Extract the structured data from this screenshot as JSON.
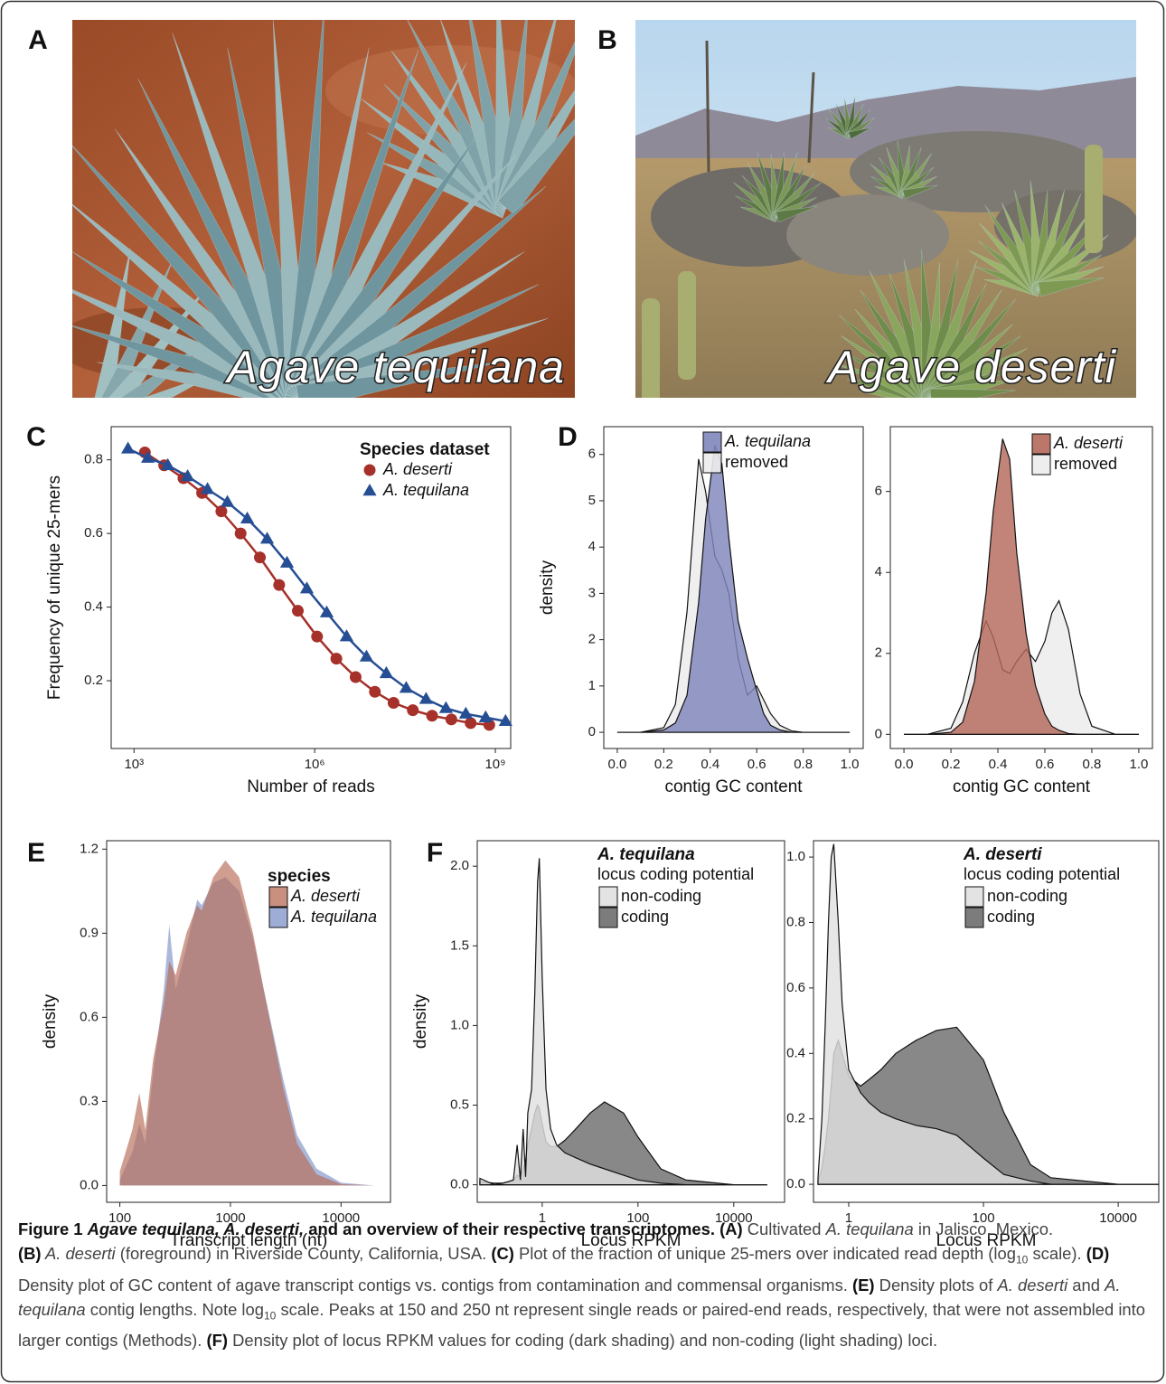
{
  "photos": [
    {
      "panel": "A",
      "caption": "Agave tequilana"
    },
    {
      "panel": "B",
      "caption": "Agave deserti"
    }
  ],
  "chart_data": [
    {
      "type": "scatter",
      "panel": "C",
      "xscale": "log",
      "legend": "top-right",
      "xlabel": "Number of reads",
      "ylabel": "Frequency of unique 25-mers",
      "legend_title": "Species dataset",
      "xlim": [
        417,
        1800000000
      ],
      "ylim": [
        0.016,
        0.89
      ],
      "xticks": [
        {
          "value": 1000,
          "label": "10³"
        },
        {
          "value": 1000000,
          "label": "10⁶"
        },
        {
          "value": 1000000000,
          "label": "10⁹"
        }
      ],
      "yticks": [
        0.2,
        0.4,
        0.6,
        0.8
      ],
      "series": [
        {
          "name": "A. deserti",
          "color": "#a6302a",
          "marker": "circle",
          "x": [
            1514,
            3162,
            6607,
            13490,
            28180,
            58880,
            123000,
            257000,
            525000,
            1096000,
            2291000,
            4786000,
            10000000,
            20420000,
            42660000,
            89130000,
            186200000,
            389000000,
            794300000
          ],
          "values": [
            0.82,
            0.785,
            0.75,
            0.71,
            0.66,
            0.6,
            0.535,
            0.46,
            0.39,
            0.32,
            0.26,
            0.21,
            0.17,
            0.14,
            0.12,
            0.105,
            0.095,
            0.085,
            0.08
          ]
        },
        {
          "name": "A. tequilana",
          "color": "#264e94",
          "marker": "triangle",
          "x": [
            794,
            1698,
            3631,
            7762,
            16600,
            35480,
            75860,
            162200,
            346700,
            741300,
            1585000,
            3388000,
            7244000,
            15490000,
            33110000,
            70790000,
            151400000,
            323600000,
            691800000,
            1479000000
          ],
          "values": [
            0.83,
            0.805,
            0.785,
            0.755,
            0.72,
            0.685,
            0.64,
            0.585,
            0.52,
            0.45,
            0.385,
            0.32,
            0.265,
            0.22,
            0.18,
            0.15,
            0.125,
            0.11,
            0.1,
            0.09
          ]
        }
      ]
    },
    {
      "type": "area",
      "panel": "D",
      "outline": true,
      "legend": "top-right",
      "xlabel": "contig GC content",
      "ylabel": "density",
      "xlim": [
        -0.058,
        1.058
      ],
      "ylim": [
        -0.35,
        6.6
      ],
      "xticks": [
        {
          "value": 0,
          "label": "0.0"
        },
        0.2,
        0.4,
        0.6,
        0.8,
        {
          "value": 1,
          "label": "1.0"
        }
      ],
      "yticks": [
        0,
        1,
        2,
        3,
        4,
        5,
        6
      ],
      "x": [
        0,
        0.1,
        0.2,
        0.25,
        0.3,
        0.35,
        0.38,
        0.42,
        0.45,
        0.48,
        0.52,
        0.56,
        0.6,
        0.63,
        0.66,
        0.7,
        0.75,
        0.8,
        0.9,
        1.0
      ],
      "series": [
        {
          "name": "A. tequilana",
          "color": "#7f86bb",
          "values": [
            0,
            0,
            0.05,
            0.2,
            0.8,
            2.8,
            4.6,
            6.2,
            5.8,
            4.2,
            2.4,
            1.6,
            0.9,
            0.4,
            0.15,
            0.05,
            0,
            0,
            0,
            0
          ]
        },
        {
          "name": "removed",
          "color": "#ececec",
          "values": [
            0,
            0,
            0.1,
            0.6,
            2.6,
            5.9,
            5.2,
            3.8,
            3.5,
            3.0,
            1.6,
            0.8,
            1.0,
            0.7,
            0.4,
            0.15,
            0.03,
            0,
            0,
            0
          ]
        }
      ]
    },
    {
      "type": "area",
      "outline": true,
      "legend": "top-right",
      "xlabel": "contig GC content",
      "xlim": [
        -0.058,
        1.058
      ],
      "ylim": [
        -0.35,
        7.6
      ],
      "xticks": [
        {
          "value": 0,
          "label": "0.0"
        },
        0.2,
        0.4,
        0.6,
        0.8,
        {
          "value": 1,
          "label": "1.0"
        }
      ],
      "yticks": [
        0,
        2,
        4,
        6
      ],
      "x": [
        0,
        0.1,
        0.2,
        0.25,
        0.3,
        0.35,
        0.38,
        0.42,
        0.45,
        0.48,
        0.52,
        0.56,
        0.6,
        0.63,
        0.66,
        0.7,
        0.75,
        0.8,
        0.9,
        1.0
      ],
      "series": [
        {
          "name": "A. deserti",
          "color": "#b4695a",
          "values": [
            0,
            0,
            0.05,
            0.3,
            1.3,
            3.5,
            5.5,
            7.3,
            6.8,
            4.5,
            2.5,
            1.2,
            0.5,
            0.2,
            0.1,
            0.02,
            0,
            0,
            0,
            0
          ]
        },
        {
          "name": "removed",
          "color": "#ececec",
          "values": [
            0,
            0,
            0.15,
            0.8,
            2.0,
            2.8,
            2.4,
            1.6,
            1.5,
            1.8,
            2.1,
            1.8,
            2.3,
            3.0,
            3.3,
            2.6,
            1.0,
            0.2,
            0,
            0
          ]
        }
      ]
    },
    {
      "type": "area",
      "panel": "E",
      "xscale": "log",
      "outline": false,
      "legend": "top-right",
      "xlabel": "Transcript length (nt)",
      "ylabel": "density",
      "legend_title": "species",
      "xlim": [
        76,
        28000
      ],
      "ylim": [
        -0.06,
        1.23
      ],
      "xticks": [
        100,
        1000,
        10000
      ],
      "yticks": [
        {
          "value": 0,
          "label": "0.0"
        },
        0.3,
        0.6,
        0.9,
        1.2
      ],
      "x": [
        100,
        130,
        150,
        170,
        200,
        250,
        280,
        320,
        400,
        500,
        550,
        700,
        900,
        1200,
        1600,
        2000,
        3000,
        4000,
        6000,
        10000,
        20000
      ],
      "series": [
        {
          "name": "A. deserti",
          "color": "#b76a54",
          "values": [
            0.05,
            0.2,
            0.33,
            0.2,
            0.45,
            0.65,
            0.8,
            0.75,
            0.9,
            1.0,
            0.98,
            1.1,
            1.16,
            1.1,
            0.9,
            0.7,
            0.35,
            0.15,
            0.04,
            0.005,
            0
          ]
        },
        {
          "name": "A. tequilana",
          "color": "#7e92c7",
          "values": [
            0.02,
            0.12,
            0.22,
            0.15,
            0.4,
            0.7,
            0.93,
            0.7,
            0.85,
            1.02,
            1.0,
            1.08,
            1.1,
            1.05,
            0.88,
            0.7,
            0.38,
            0.18,
            0.06,
            0.01,
            0
          ]
        }
      ]
    },
    {
      "type": "area",
      "panel": "F",
      "xscale": "log",
      "outline": true,
      "legend": "top-right",
      "xlabel": "Locus RPKM",
      "ylabel": "density",
      "legend_title": "A. tequilana",
      "legend_subtitle": "locus coding potential",
      "xlim": [
        0.044,
        115000
      ],
      "ylim": [
        -0.11,
        2.16
      ],
      "xticks": [
        1,
        100,
        10000
      ],
      "yticks": [
        {
          "value": 0,
          "label": "0.0"
        },
        0.5,
        {
          "value": 1,
          "label": "1.0"
        },
        1.5,
        {
          "value": 2,
          "label": "2.0"
        }
      ],
      "x": [
        0.05,
        0.1,
        0.15,
        0.2,
        0.25,
        0.3,
        0.35,
        0.4,
        0.45,
        0.5,
        0.6,
        0.7,
        0.8,
        0.87,
        1,
        1.2,
        1.5,
        2,
        3,
        5,
        10,
        20,
        50,
        100,
        300,
        1000,
        10000,
        50000
      ],
      "series": [
        {
          "name": "non-coding",
          "color": "#e0e0e0",
          "values": [
            0.04,
            0,
            0.01,
            0.02,
            0.03,
            0.25,
            0.03,
            0.35,
            0.05,
            0.45,
            0.6,
            1.2,
            1.9,
            2.05,
            1.3,
            0.6,
            0.35,
            0.25,
            0.2,
            0.17,
            0.13,
            0.1,
            0.06,
            0.03,
            0.01,
            0,
            0,
            0
          ]
        },
        {
          "name": "coding",
          "color": "#6e6e6e",
          "values": [
            0.02,
            0.01,
            0.01,
            0.02,
            0.03,
            0.06,
            0.05,
            0.1,
            0.15,
            0.25,
            0.35,
            0.45,
            0.5,
            0.48,
            0.38,
            0.27,
            0.24,
            0.24,
            0.28,
            0.35,
            0.45,
            0.52,
            0.45,
            0.3,
            0.1,
            0.03,
            0,
            0
          ]
        }
      ]
    },
    {
      "type": "area",
      "xscale": "log",
      "outline": true,
      "legend": "top-right",
      "xlabel": "Locus RPKM",
      "legend_title": "A. deserti",
      "legend_subtitle": "locus coding potential",
      "xlim": [
        0.3,
        40000
      ],
      "ylim": [
        -0.055,
        1.05
      ],
      "xticks": [
        1,
        100,
        10000
      ],
      "yticks": [
        {
          "value": 0,
          "label": "0.0"
        },
        0.2,
        0.4,
        0.6,
        0.8,
        {
          "value": 1,
          "label": "1.0"
        }
      ],
      "x": [
        0.35,
        0.4,
        0.45,
        0.5,
        0.55,
        0.6,
        0.7,
        0.8,
        1,
        1.5,
        2,
        3,
        5,
        10,
        20,
        40,
        100,
        200,
        500,
        1000,
        10000,
        40000
      ],
      "series": [
        {
          "name": "non-coding",
          "color": "#e0e0e0",
          "values": [
            0.02,
            0.2,
            0.5,
            0.8,
            1.0,
            1.04,
            0.8,
            0.55,
            0.35,
            0.28,
            0.25,
            0.22,
            0.2,
            0.18,
            0.17,
            0.15,
            0.08,
            0.03,
            0.01,
            0,
            0,
            0
          ]
        },
        {
          "name": "coding",
          "color": "#6e6e6e",
          "values": [
            0.01,
            0.05,
            0.12,
            0.2,
            0.3,
            0.4,
            0.44,
            0.4,
            0.33,
            0.3,
            0.32,
            0.35,
            0.4,
            0.44,
            0.47,
            0.48,
            0.38,
            0.22,
            0.06,
            0.02,
            0,
            0
          ]
        }
      ]
    }
  ],
  "caption": [
    "Figure 1 ",
    "Agave tequilana, A. deserti,",
    " and an overview of their respective transcriptomes. ",
    "(A)",
    " Cultivated ",
    "A. tequilana",
    " in Jalisco, Mexico. ",
    "(B)",
    " A. deserti",
    " (foreground) in Riverside County, California, USA. ",
    "(C)",
    " Plot of the fraction of unique 25-mers over indicated read depth (log",
    "10",
    " scale). ",
    "(D)",
    " Density plot of GC content of agave transcript contigs vs. contigs from contamination and commensal organisms. ",
    "(E)",
    " Density plots of ",
    "A. deserti",
    " and ",
    "A. tequilana",
    " contig lengths. Note log",
    "10",
    " scale. Peaks at 150 and 250 nt represent single reads or paired-end reads, respectively, that were not assembled into larger contigs (Methods). ",
    "(F)",
    " Density plot of locus RPKM values for coding (dark shading) and non-coding (light shading) loci."
  ]
}
